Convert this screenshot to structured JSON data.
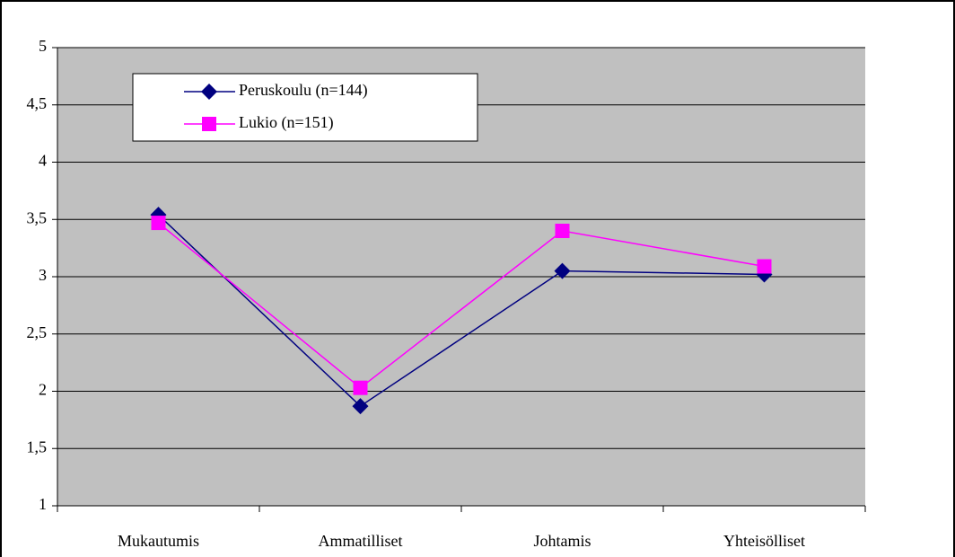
{
  "chart_data": {
    "type": "line",
    "categories": [
      "Mukautumis",
      "Ammatilliset",
      "Johtamis",
      "Yhteisölliset"
    ],
    "series": [
      {
        "name": "Peruskoulu (n=144)",
        "color": "#000080",
        "marker": "diamond",
        "values": [
          3.54,
          1.87,
          3.05,
          3.02
        ]
      },
      {
        "name": "Lukio (n=151)",
        "color": "#ff00ff",
        "marker": "square",
        "values": [
          3.47,
          2.03,
          3.4,
          3.09
        ]
      }
    ],
    "ylim": [
      1,
      5
    ],
    "yticks": [
      1,
      {
        "value": 1.5,
        "label": "1,5"
      },
      2,
      {
        "value": 2.5,
        "label": "2,5"
      },
      3,
      {
        "value": 3.5,
        "label": "3,5"
      },
      4,
      {
        "value": 4.5,
        "label": "4,5"
      },
      5
    ],
    "grid": true,
    "legend": "upper left"
  }
}
